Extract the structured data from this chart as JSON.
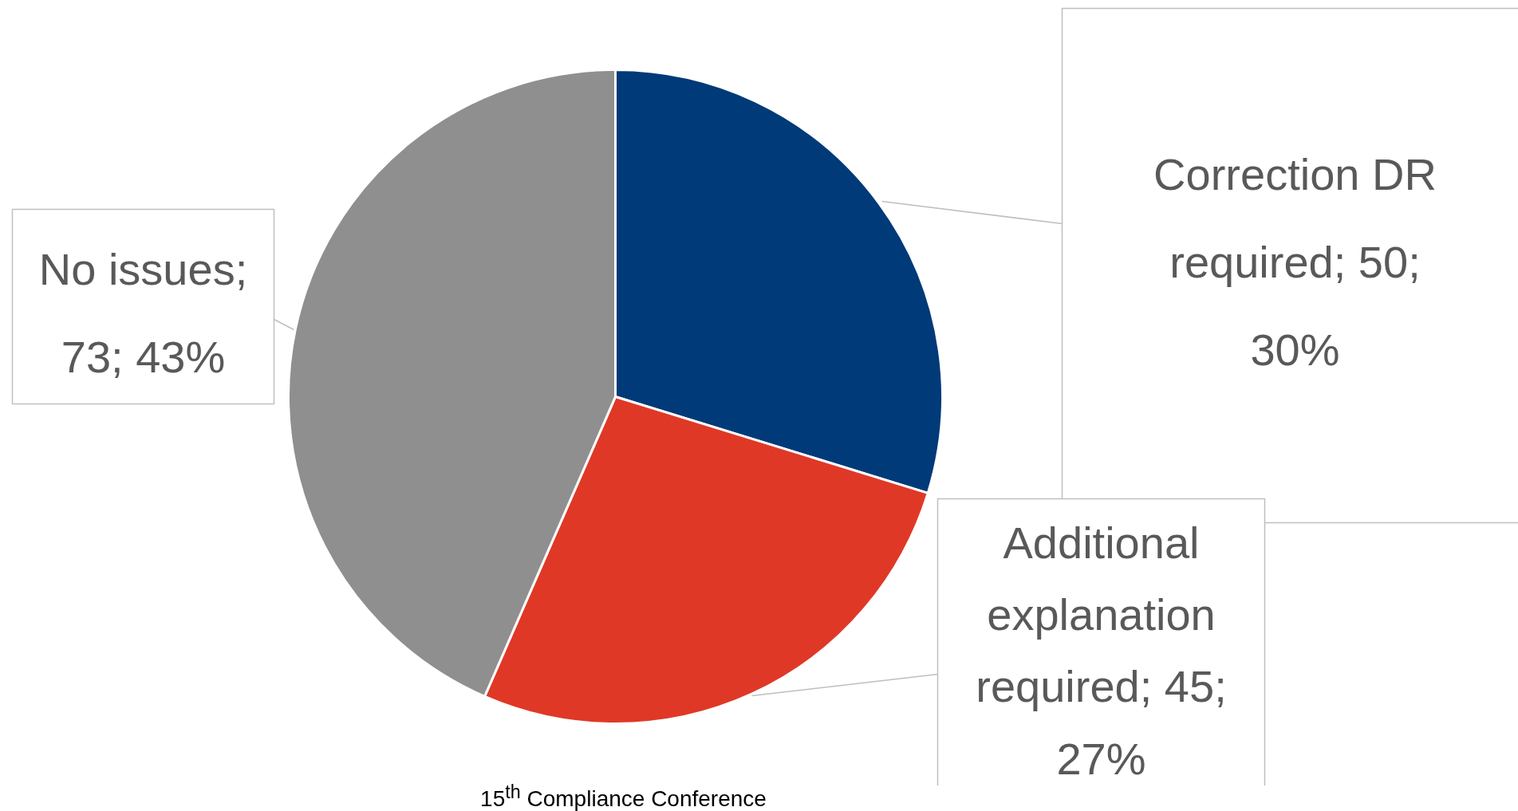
{
  "chart_data": {
    "type": "pie",
    "categories": [
      "Correction DR required",
      "Additional explanation required",
      "No issues"
    ],
    "values": [
      50,
      45,
      73
    ],
    "colors": [
      "#003a78",
      "#e03826",
      "#8f8f8f"
    ],
    "value_labels": [
      "; 50; 30%",
      "; 45; 27%",
      "; 73; 43%"
    ],
    "annotations": [
      "15$^{th}$ Compliance Conference"
    ]
  }
}
